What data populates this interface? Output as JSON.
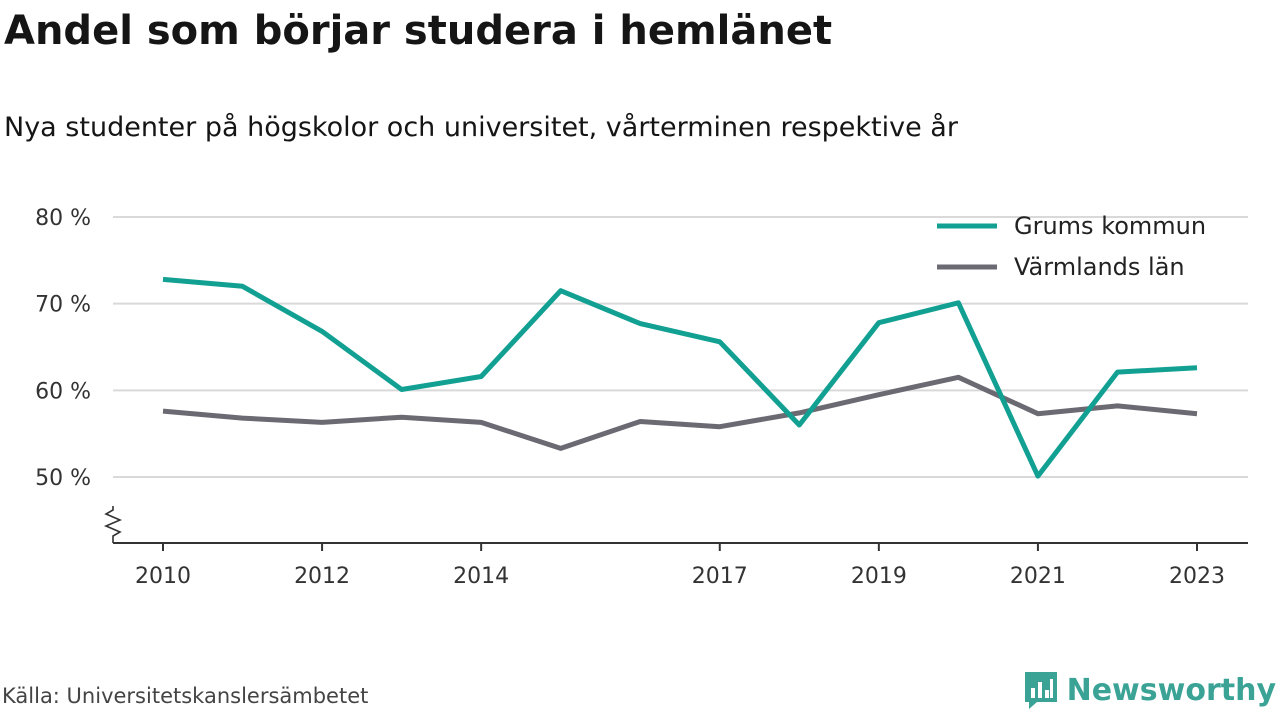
{
  "header": {
    "title": "Andel som börjar studera i hemlänet",
    "subtitle": "Nya studenter på högskolor och universitet, vårterminen respektive år"
  },
  "footer": {
    "source": "Källa: Universitetskanslersämbetet",
    "brand": "Newsworthy",
    "brand_icon": "newsworthy-logo-icon"
  },
  "chart_data": {
    "type": "line",
    "x": [
      2010,
      2011,
      2012,
      2013,
      2014,
      2015,
      2016,
      2017,
      2018,
      2019,
      2020,
      2021,
      2022,
      2023
    ],
    "x_ticks": [
      2010,
      2012,
      2014,
      2017,
      2019,
      2021,
      2023
    ],
    "y_ticks": [
      50,
      60,
      70,
      80
    ],
    "y_tick_labels": [
      "50 %",
      "60 %",
      "70 %",
      "80 %"
    ],
    "ylim": [
      42.5,
      80
    ],
    "y_axis_break": true,
    "grid": true,
    "legend_position": "top-right",
    "series": [
      {
        "name": "Grums kommun",
        "color": "#12a093",
        "values": [
          72.8,
          72.0,
          66.8,
          60.1,
          61.6,
          71.5,
          67.7,
          65.6,
          56.0,
          67.8,
          70.1,
          50.1,
          62.1,
          62.6
        ]
      },
      {
        "name": "Värmlands län",
        "color": "#6b6a72",
        "values": [
          57.6,
          56.8,
          56.3,
          56.9,
          56.3,
          53.3,
          56.4,
          55.8,
          57.4,
          59.5,
          61.5,
          57.3,
          58.2,
          57.3
        ]
      }
    ]
  }
}
